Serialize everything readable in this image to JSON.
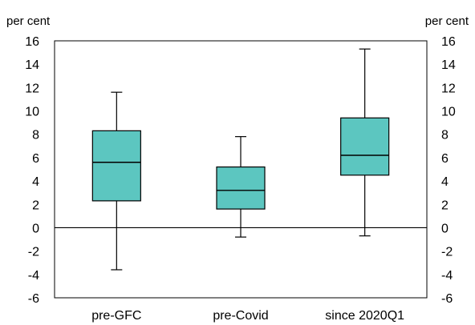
{
  "chart_data": {
    "type": "box",
    "left_unit_label": "per cent",
    "right_unit_label": "per cent",
    "categories": [
      "pre-GFC",
      "pre-Covid",
      "since 2020Q1"
    ],
    "boxes": [
      {
        "category": "pre-GFC",
        "whisker_low": -3.6,
        "q1": 2.3,
        "median": 5.6,
        "q3": 8.3,
        "whisker_high": 11.6
      },
      {
        "category": "pre-Covid",
        "whisker_low": -0.8,
        "q1": 1.6,
        "median": 3.2,
        "q3": 5.2,
        "whisker_high": 7.8
      },
      {
        "category": "since 2020Q1",
        "whisker_low": -0.7,
        "q1": 4.5,
        "median": 6.2,
        "q3": 9.4,
        "whisker_high": 15.3
      }
    ],
    "ylim": [
      -6,
      16
    ],
    "y_ticks": [
      16,
      14,
      12,
      10,
      8,
      6,
      4,
      2,
      0,
      -2,
      -4,
      -6
    ],
    "box_color": "#5CC6C0",
    "line_color": "#000000",
    "grid": false
  }
}
